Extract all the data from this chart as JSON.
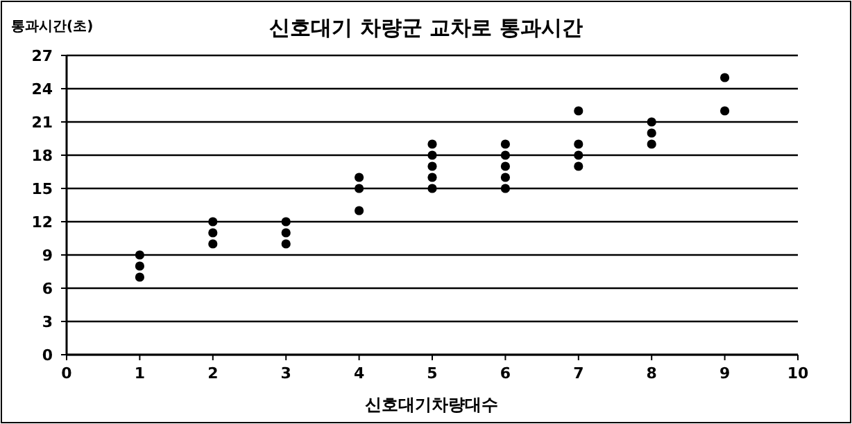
{
  "chart_data": {
    "type": "scatter",
    "title": "신호대기 차량군 교차로 통과시간",
    "ylabel": "통과시간(초)",
    "xlabel": "신호대기차량대수",
    "x": [
      1,
      1,
      1,
      2,
      2,
      2,
      3,
      3,
      3,
      4,
      4,
      4,
      5,
      5,
      5,
      5,
      5,
      6,
      6,
      6,
      6,
      6,
      7,
      7,
      7,
      7,
      8,
      8,
      8,
      9,
      9
    ],
    "values": [
      7,
      8,
      9,
      10,
      11,
      12,
      10,
      11,
      12,
      13,
      15,
      16,
      15,
      16,
      17,
      18,
      19,
      15,
      16,
      17,
      18,
      19,
      17,
      18,
      19,
      22,
      19,
      20,
      21,
      22,
      25
    ],
    "color": "#000000",
    "marker": "circle",
    "xlim": [
      0,
      10
    ],
    "xticks": [
      0,
      1,
      2,
      3,
      4,
      5,
      6,
      7,
      8,
      9,
      10
    ],
    "ylim": [
      0,
      27
    ],
    "yticks": [
      0,
      3,
      6,
      9,
      12,
      15,
      18,
      21,
      24,
      27
    ],
    "grid": "y"
  }
}
